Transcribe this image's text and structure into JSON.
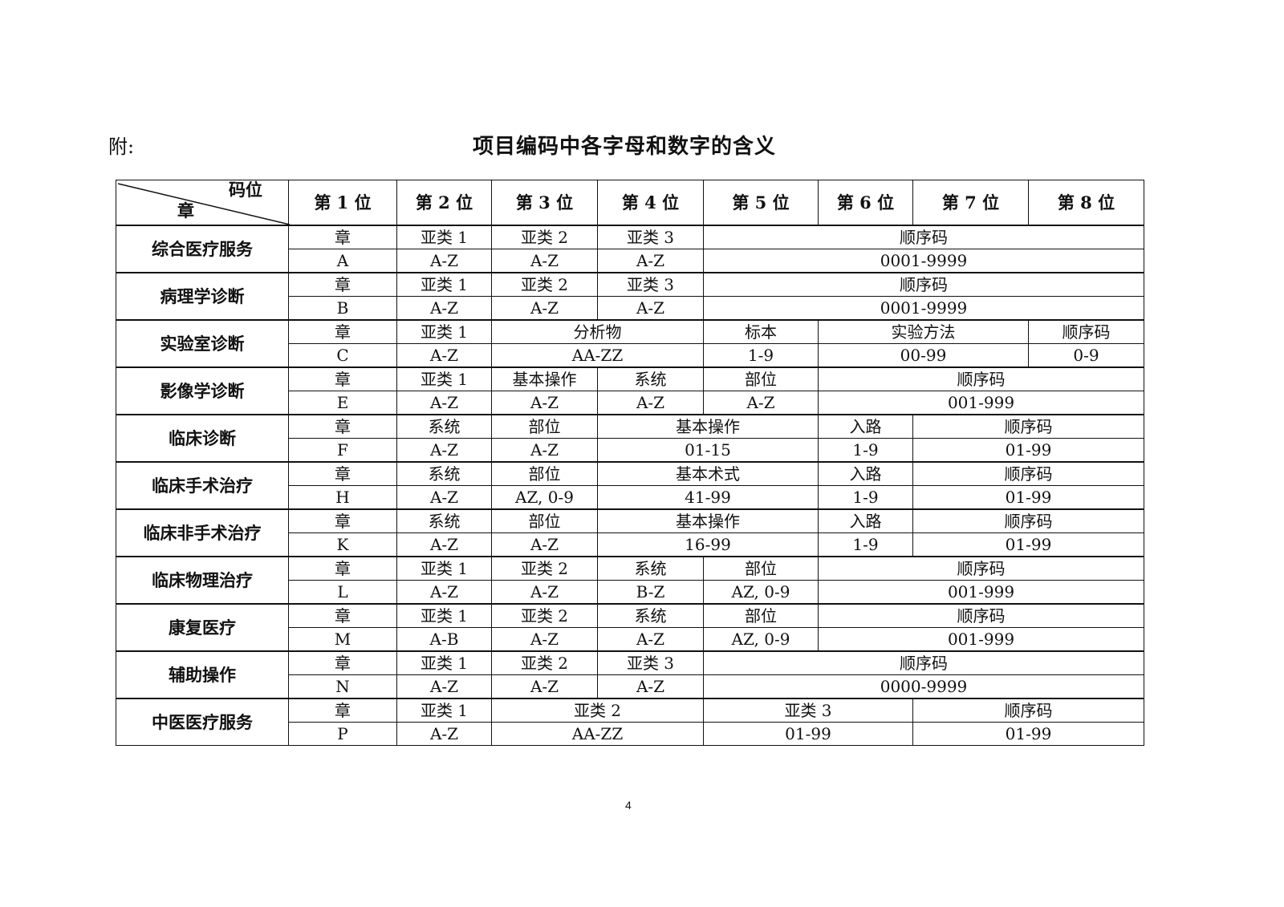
{
  "prefix": "附:",
  "title": "项目编码中各字母和数字的含义",
  "header": {
    "corner_top": "码位",
    "corner_bottom": "章",
    "positions": [
      "第 1 位",
      "第 2 位",
      "第 3 位",
      "第 4 位",
      "第 5 位",
      "第 6 位",
      "第 7 位",
      "第 8 位"
    ]
  },
  "chapters": [
    {
      "name": "综合医疗服务",
      "meaning": [
        [
          "章",
          1
        ],
        [
          "亚类 1",
          1
        ],
        [
          "亚类 2",
          1
        ],
        [
          "亚类 3",
          1
        ],
        [
          "顺序码",
          4
        ]
      ],
      "codes": [
        [
          "A",
          1
        ],
        [
          "A-Z",
          1
        ],
        [
          "A-Z",
          1
        ],
        [
          "A-Z",
          1
        ],
        [
          "0001-9999",
          4
        ]
      ]
    },
    {
      "name": "病理学诊断",
      "meaning": [
        [
          "章",
          1
        ],
        [
          "亚类 1",
          1
        ],
        [
          "亚类 2",
          1
        ],
        [
          "亚类 3",
          1
        ],
        [
          "顺序码",
          4
        ]
      ],
      "codes": [
        [
          "B",
          1
        ],
        [
          "A-Z",
          1
        ],
        [
          "A-Z",
          1
        ],
        [
          "A-Z",
          1
        ],
        [
          "0001-9999",
          4
        ]
      ]
    },
    {
      "name": "实验室诊断",
      "meaning": [
        [
          "章",
          1
        ],
        [
          "亚类 1",
          1
        ],
        [
          "分析物",
          2
        ],
        [
          "标本",
          1
        ],
        [
          "实验方法",
          2
        ],
        [
          "顺序码",
          1
        ]
      ],
      "codes": [
        [
          "C",
          1
        ],
        [
          "A-Z",
          1
        ],
        [
          "AA-ZZ",
          2
        ],
        [
          "1-9",
          1
        ],
        [
          "00-99",
          2
        ],
        [
          "0-9",
          1
        ]
      ]
    },
    {
      "name": "影像学诊断",
      "meaning": [
        [
          "章",
          1
        ],
        [
          "亚类 1",
          1
        ],
        [
          "基本操作",
          1
        ],
        [
          "系统",
          1
        ],
        [
          "部位",
          1
        ],
        [
          "顺序码",
          3
        ]
      ],
      "codes": [
        [
          "E",
          1
        ],
        [
          "A-Z",
          1
        ],
        [
          "A-Z",
          1
        ],
        [
          "A-Z",
          1
        ],
        [
          "A-Z",
          1
        ],
        [
          "001-999",
          3
        ]
      ]
    },
    {
      "name": "临床诊断",
      "meaning": [
        [
          "章",
          1
        ],
        [
          "系统",
          1
        ],
        [
          "部位",
          1
        ],
        [
          "基本操作",
          2
        ],
        [
          "入路",
          1
        ],
        [
          "顺序码",
          2
        ]
      ],
      "codes": [
        [
          "F",
          1
        ],
        [
          "A-Z",
          1
        ],
        [
          "A-Z",
          1
        ],
        [
          "01-15",
          2
        ],
        [
          "1-9",
          1
        ],
        [
          "01-99",
          2
        ]
      ]
    },
    {
      "name": "临床手术治疗",
      "meaning": [
        [
          "章",
          1
        ],
        [
          "系统",
          1
        ],
        [
          "部位",
          1
        ],
        [
          "基本术式",
          2
        ],
        [
          "入路",
          1
        ],
        [
          "顺序码",
          2
        ]
      ],
      "codes": [
        [
          "H",
          1
        ],
        [
          "A-Z",
          1
        ],
        [
          "AZ, 0-9",
          1
        ],
        [
          "41-99",
          2
        ],
        [
          "1-9",
          1
        ],
        [
          "01-99",
          2
        ]
      ]
    },
    {
      "name": "临床非手术治疗",
      "meaning": [
        [
          "章",
          1
        ],
        [
          "系统",
          1
        ],
        [
          "部位",
          1
        ],
        [
          "基本操作",
          2
        ],
        [
          "入路",
          1
        ],
        [
          "顺序码",
          2
        ]
      ],
      "codes": [
        [
          "K",
          1
        ],
        [
          "A-Z",
          1
        ],
        [
          "A-Z",
          1
        ],
        [
          "16-99",
          2
        ],
        [
          "1-9",
          1
        ],
        [
          "01-99",
          2
        ]
      ]
    },
    {
      "name": "临床物理治疗",
      "meaning": [
        [
          "章",
          1
        ],
        [
          "亚类 1",
          1
        ],
        [
          "亚类 2",
          1
        ],
        [
          "系统",
          1
        ],
        [
          "部位",
          1
        ],
        [
          "顺序码",
          3
        ]
      ],
      "codes": [
        [
          "L",
          1
        ],
        [
          "A-Z",
          1
        ],
        [
          "A-Z",
          1
        ],
        [
          "B-Z",
          1
        ],
        [
          "AZ, 0-9",
          1
        ],
        [
          "001-999",
          3
        ]
      ]
    },
    {
      "name": "康复医疗",
      "meaning": [
        [
          "章",
          1
        ],
        [
          "亚类 1",
          1
        ],
        [
          "亚类 2",
          1
        ],
        [
          "系统",
          1
        ],
        [
          "部位",
          1
        ],
        [
          "顺序码",
          3
        ]
      ],
      "codes": [
        [
          "M",
          1
        ],
        [
          "A-B",
          1
        ],
        [
          "A-Z",
          1
        ],
        [
          "A-Z",
          1
        ],
        [
          "AZ, 0-9",
          1
        ],
        [
          "001-999",
          3
        ]
      ]
    },
    {
      "name": "辅助操作",
      "meaning": [
        [
          "章",
          1
        ],
        [
          "亚类 1",
          1
        ],
        [
          "亚类 2",
          1
        ],
        [
          "亚类 3",
          1
        ],
        [
          "顺序码",
          4
        ]
      ],
      "codes": [
        [
          "N",
          1
        ],
        [
          "A-Z",
          1
        ],
        [
          "A-Z",
          1
        ],
        [
          "A-Z",
          1
        ],
        [
          "0000-9999",
          4
        ]
      ]
    },
    {
      "name": "中医医疗服务",
      "meaning": [
        [
          "章",
          1
        ],
        [
          "亚类 1",
          1
        ],
        [
          "亚类 2",
          2
        ],
        [
          "亚类 3",
          2
        ],
        [
          "顺序码",
          2
        ]
      ],
      "codes": [
        [
          "P",
          1
        ],
        [
          "A-Z",
          1
        ],
        [
          "AA-ZZ",
          2
        ],
        [
          "01-99",
          2
        ],
        [
          "01-99",
          2
        ]
      ]
    }
  ],
  "page_number": "4"
}
